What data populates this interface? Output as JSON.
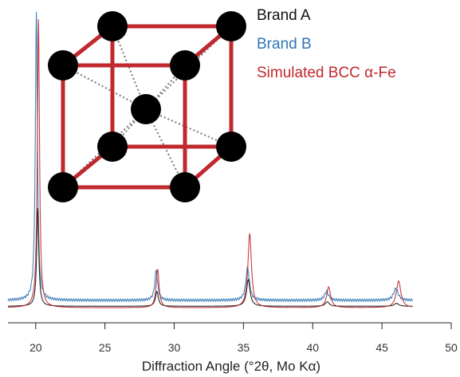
{
  "chart_data": {
    "type": "line",
    "title": "",
    "xlabel": "Diffraction Angle (°2θ, Mo Kα)",
    "ylabel": "",
    "xlim": [
      18,
      50
    ],
    "xticks": [
      20,
      25,
      30,
      35,
      40,
      45,
      50
    ],
    "xtick_labels": [
      "20",
      "25",
      "30",
      "35",
      "40",
      "45",
      "50"
    ],
    "ylim": [
      0,
      1.0
    ],
    "grid": false,
    "legend_position": "top-right",
    "series": [
      {
        "name": "Brand A",
        "color": "#111111",
        "baseline": 0.01,
        "peaks": [
          {
            "x": 20.15,
            "y": 0.33
          },
          {
            "x": 28.75,
            "y": 0.05
          },
          {
            "x": 35.35,
            "y": 0.09
          },
          {
            "x": 41.05,
            "y": 0.015
          },
          {
            "x": 46.05,
            "y": 0.01
          }
        ]
      },
      {
        "name": "Brand B",
        "color": "#2e75b6",
        "baseline": 0.03,
        "peaks": [
          {
            "x": 20.05,
            "y": 0.97
          },
          {
            "x": 28.7,
            "y": 0.1
          },
          {
            "x": 35.3,
            "y": 0.11
          },
          {
            "x": 41.0,
            "y": 0.03
          },
          {
            "x": 46.0,
            "y": 0.04
          }
        ]
      },
      {
        "name": "Simulated BCC α-Fe",
        "color": "#c0282d",
        "baseline": 0.005,
        "peaks": [
          {
            "x": 20.2,
            "y": 0.97
          },
          {
            "x": 28.8,
            "y": 0.13
          },
          {
            "x": 35.45,
            "y": 0.25
          },
          {
            "x": 41.15,
            "y": 0.07
          },
          {
            "x": 46.2,
            "y": 0.09
          }
        ]
      }
    ]
  }
}
